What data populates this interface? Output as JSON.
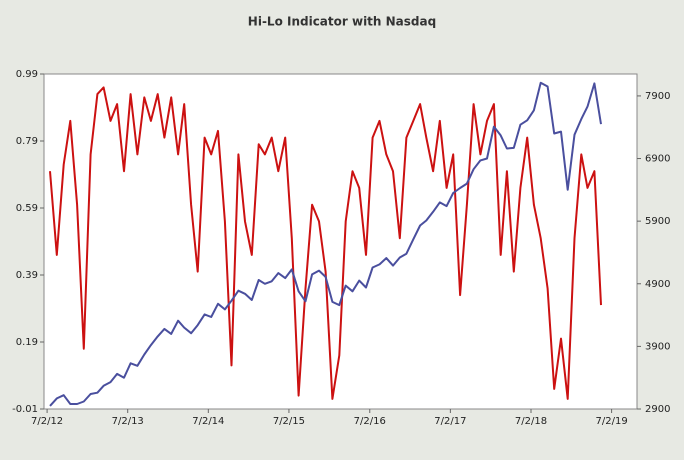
{
  "chart_data": {
    "type": "line",
    "title": "Hi-Lo Indicator with Nasdaq",
    "x": [
      "2012-07-15",
      "2012-08-15",
      "2012-09-15",
      "2012-10-15",
      "2012-11-15",
      "2012-12-15",
      "2013-01-15",
      "2013-02-15",
      "2013-03-15",
      "2013-04-15",
      "2013-05-15",
      "2013-06-15",
      "2013-07-15",
      "2013-08-15",
      "2013-09-15",
      "2013-10-15",
      "2013-11-15",
      "2013-12-15",
      "2014-01-15",
      "2014-02-15",
      "2014-03-15",
      "2014-04-15",
      "2014-05-15",
      "2014-06-15",
      "2014-07-15",
      "2014-08-15",
      "2014-09-15",
      "2014-10-15",
      "2014-11-15",
      "2014-12-15",
      "2015-01-15",
      "2015-02-15",
      "2015-03-15",
      "2015-04-15",
      "2015-05-15",
      "2015-06-15",
      "2015-07-15",
      "2015-08-15",
      "2015-09-15",
      "2015-10-15",
      "2015-11-15",
      "2015-12-15",
      "2016-01-15",
      "2016-02-15",
      "2016-03-15",
      "2016-04-15",
      "2016-05-15",
      "2016-06-15",
      "2016-07-15",
      "2016-08-15",
      "2016-09-15",
      "2016-10-15",
      "2016-11-15",
      "2016-12-15",
      "2017-01-15",
      "2017-02-15",
      "2017-03-15",
      "2017-04-15",
      "2017-05-15",
      "2017-06-15",
      "2017-07-15",
      "2017-08-15",
      "2017-09-15",
      "2017-10-15",
      "2017-11-15",
      "2017-12-15",
      "2018-01-15",
      "2018-02-15",
      "2018-03-15",
      "2018-04-15",
      "2018-05-15",
      "2018-06-15",
      "2018-07-15",
      "2018-08-15",
      "2018-09-15",
      "2018-10-15",
      "2018-11-15",
      "2018-12-15",
      "2019-01-15",
      "2019-02-15",
      "2019-03-15",
      "2019-04-15",
      "2019-05-15"
    ],
    "series": [
      {
        "color": "#cc1111",
        "axis": "y",
        "values": [
          0.7,
          0.45,
          0.72,
          0.85,
          0.6,
          0.17,
          0.75,
          0.93,
          0.95,
          0.85,
          0.9,
          0.7,
          0.93,
          0.75,
          0.92,
          0.85,
          0.93,
          0.8,
          0.92,
          0.75,
          0.9,
          0.6,
          0.4,
          0.8,
          0.75,
          0.82,
          0.55,
          0.12,
          0.75,
          0.55,
          0.45,
          0.78,
          0.75,
          0.8,
          0.7,
          0.8,
          0.5,
          0.03,
          0.35,
          0.6,
          0.55,
          0.4,
          0.02,
          0.15,
          0.55,
          0.7,
          0.65,
          0.45,
          0.8,
          0.85,
          0.75,
          0.7,
          0.5,
          0.8,
          0.85,
          0.9,
          0.8,
          0.7,
          0.85,
          0.65,
          0.75,
          0.33,
          0.6,
          0.9,
          0.75,
          0.85,
          0.9,
          0.45,
          0.7,
          0.4,
          0.65,
          0.8,
          0.6,
          0.5,
          0.35,
          0.05,
          0.2,
          0.02,
          0.5,
          0.75,
          0.65,
          0.7,
          0.3
        ]
      },
      {
        "color": "#4a4f9e",
        "axis": "y2",
        "values": [
          2950,
          3070,
          3120,
          2980,
          2980,
          3020,
          3140,
          3160,
          3270,
          3330,
          3460,
          3400,
          3630,
          3590,
          3770,
          3920,
          4060,
          4180,
          4100,
          4310,
          4200,
          4110,
          4240,
          4410,
          4370,
          4580,
          4490,
          4630,
          4790,
          4740,
          4640,
          4960,
          4900,
          4940,
          5070,
          4990,
          5130,
          4780,
          4620,
          5050,
          5110,
          5010,
          4610,
          4560,
          4870,
          4780,
          4950,
          4840,
          5160,
          5210,
          5310,
          5190,
          5320,
          5380,
          5610,
          5830,
          5910,
          6050,
          6200,
          6140,
          6350,
          6430,
          6500,
          6730,
          6870,
          6900,
          7410,
          7270,
          7060,
          7070,
          7440,
          7510,
          7670,
          8110,
          8050,
          7300,
          7330,
          6400,
          7280,
          7530,
          7730,
          8100,
          7450
        ]
      }
    ],
    "xlim": [
      "2012-06-18",
      "2019-10-25"
    ],
    "xticks": [
      {
        "value": "2012-07-02",
        "label": "7/2/12"
      },
      {
        "value": "2013-07-02",
        "label": "7/2/13"
      },
      {
        "value": "2014-07-02",
        "label": "7/2/14"
      },
      {
        "value": "2015-07-02",
        "label": "7/2/15"
      },
      {
        "value": "2016-07-02",
        "label": "7/2/16"
      },
      {
        "value": "2017-07-02",
        "label": "7/2/17"
      },
      {
        "value": "2018-07-02",
        "label": "7/2/18"
      },
      {
        "value": "2019-07-02",
        "label": "7/2/19"
      }
    ],
    "ylim": [
      -0.01,
      0.99
    ],
    "yticks": [
      -0.01,
      0.19,
      0.39,
      0.59,
      0.79,
      0.99
    ],
    "y2lim": [
      2900,
      8250
    ],
    "y2ticks": [
      2900,
      3900,
      4900,
      5900,
      6900,
      7900
    ]
  }
}
